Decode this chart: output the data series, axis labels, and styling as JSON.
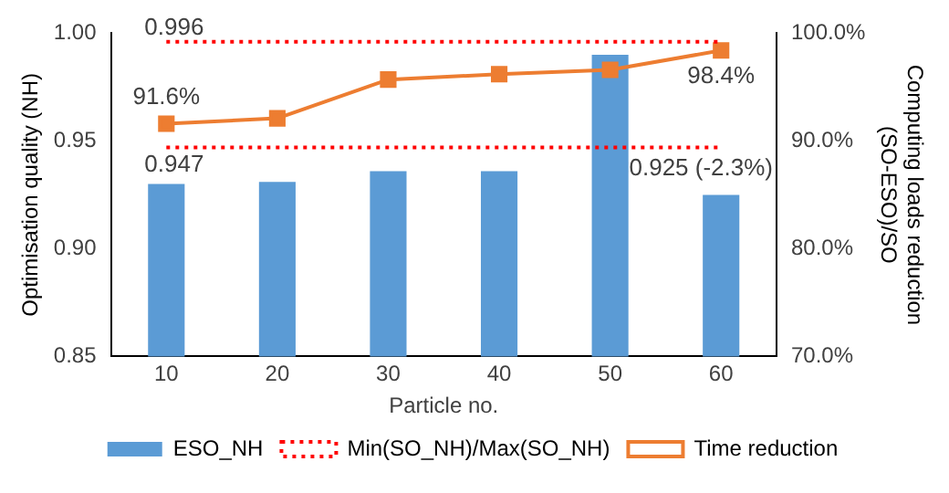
{
  "chart_data": {
    "type": "bar",
    "xlabel": "Particle no.",
    "ylabel": "Optimisation quality (NH)",
    "y2label": "Computing loads reduction\n(SO-ESO)/SO",
    "categories": [
      "10",
      "20",
      "30",
      "40",
      "50",
      "60"
    ],
    "series": [
      {
        "name": "ESO_NH",
        "color": "#5b9bd5",
        "values": [
          0.93,
          0.931,
          0.936,
          0.936,
          0.99,
          0.925
        ],
        "value_labels": [
          null,
          null,
          null,
          null,
          null,
          "0.925 (-2.3%)"
        ]
      },
      {
        "name": "Min(SO_NH)/Max(SO_NH)",
        "type": "line",
        "color": "#ff0000",
        "line_style": "dotted",
        "marker": "none",
        "values": [
          0.996,
          0.996,
          0.996,
          0.996,
          0.996,
          0.996
        ]
      },
      {
        "type": "line",
        "color": "#ff0000",
        "line_style": "dotted",
        "marker": "none",
        "values": [
          0.947,
          0.947,
          0.947,
          0.947,
          0.947,
          0.947
        ]
      },
      {
        "name": "Time reduction",
        "type": "line",
        "axis": "y2",
        "color": "#ed7d31",
        "line_style": "solid",
        "marker": "square",
        "values": [
          91.6,
          92.1,
          95.7,
          96.2,
          96.6,
          98.4
        ],
        "value_labels": [
          "91.6%",
          null,
          null,
          null,
          null,
          "98.4%"
        ]
      }
    ],
    "annotations": [
      {
        "text": "0.996",
        "x": "10",
        "y": 0.996
      },
      {
        "text": "0.947",
        "x": "10",
        "y": 0.947
      }
    ],
    "ylim": [
      0.85,
      1.0
    ],
    "yticks": [
      {
        "value": 0.85,
        "label": "0.85"
      },
      {
        "value": 0.9,
        "label": "0.90"
      },
      {
        "value": 0.95,
        "label": "0.95"
      },
      {
        "value": 1.0,
        "label": "1.00"
      }
    ],
    "y2lim": [
      70,
      100
    ],
    "y2ticks": [
      {
        "value": 70,
        "label": "70.0%"
      },
      {
        "value": 80,
        "label": "80.0%"
      },
      {
        "value": 90,
        "label": "90.0%"
      },
      {
        "value": 100,
        "label": "100.0%"
      }
    ],
    "grid": false,
    "legend": "bottom"
  }
}
